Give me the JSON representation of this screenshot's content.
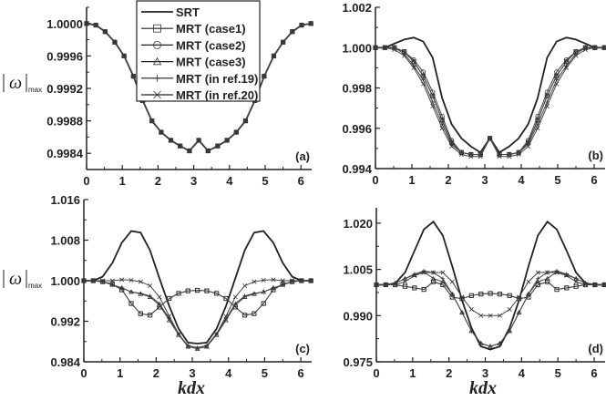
{
  "chart_data": [
    {
      "panel_label": "(a)",
      "type": "line",
      "xlabel": "",
      "ylabel": "|ω|max",
      "xlim": [
        0,
        6.3
      ],
      "ylim": [
        0.9982,
        1.0002
      ],
      "xticks": [
        0,
        1,
        2,
        3,
        4,
        5,
        6
      ],
      "yticks": [
        0.9984,
        0.9988,
        0.9992,
        0.9996,
        1.0
      ],
      "ytick_labels": [
        "0.9984",
        "0.9988",
        "0.9992",
        "0.9996",
        "1.0000"
      ],
      "legend": {
        "placement": "top-center",
        "entries": [
          "SRT",
          "MRT (case1)",
          "MRT (case2)",
          "MRT (case3)",
          "MRT (in ref.19)",
          "MRT (in ref.20)"
        ]
      },
      "x": [
        0,
        0.26,
        0.52,
        0.79,
        1.05,
        1.31,
        1.57,
        1.83,
        2.09,
        2.36,
        2.62,
        2.88,
        3.14,
        3.4,
        3.67,
        3.93,
        4.19,
        4.45,
        4.71,
        4.97,
        5.24,
        5.5,
        5.76,
        6.02,
        6.28
      ],
      "series": [
        {
          "name": "SRT",
          "marker": "none",
          "values": [
            1.0,
            0.99998,
            0.9999,
            0.99977,
            0.9996,
            0.99935,
            0.99905,
            0.9988,
            0.99866,
            0.99856,
            0.99849,
            0.99843,
            0.99856,
            0.99843,
            0.99849,
            0.99856,
            0.99866,
            0.9988,
            0.99905,
            0.99935,
            0.9996,
            0.99977,
            0.9999,
            0.99998,
            1.0
          ]
        },
        {
          "name": "MRT (case1)",
          "marker": "square",
          "values": [
            1.0,
            0.99998,
            0.9999,
            0.99977,
            0.9996,
            0.99935,
            0.99905,
            0.9988,
            0.99866,
            0.99856,
            0.99849,
            0.99843,
            0.99856,
            0.99843,
            0.99849,
            0.99856,
            0.99866,
            0.9988,
            0.99905,
            0.99935,
            0.9996,
            0.99977,
            0.9999,
            0.99998,
            1.0
          ]
        },
        {
          "name": "MRT (case2)",
          "marker": "circle",
          "values": [
            1.0,
            0.99998,
            0.9999,
            0.99977,
            0.9996,
            0.99935,
            0.99905,
            0.9988,
            0.99866,
            0.99856,
            0.99849,
            0.99843,
            0.99856,
            0.99843,
            0.99849,
            0.99856,
            0.99866,
            0.9988,
            0.99905,
            0.99935,
            0.9996,
            0.99977,
            0.9999,
            0.99998,
            1.0
          ]
        },
        {
          "name": "MRT (case3)",
          "marker": "triangle",
          "values": [
            1.0,
            0.99998,
            0.9999,
            0.99977,
            0.9996,
            0.99935,
            0.99905,
            0.9988,
            0.99866,
            0.99856,
            0.99849,
            0.99843,
            0.99856,
            0.99843,
            0.99849,
            0.99856,
            0.99866,
            0.9988,
            0.99905,
            0.99935,
            0.9996,
            0.99977,
            0.9999,
            0.99998,
            1.0
          ]
        },
        {
          "name": "MRT (in ref.19)",
          "marker": "plus",
          "values": [
            1.0,
            0.99998,
            0.9999,
            0.99977,
            0.9996,
            0.99935,
            0.99905,
            0.9988,
            0.99866,
            0.99856,
            0.99849,
            0.99843,
            0.99856,
            0.99843,
            0.99849,
            0.99856,
            0.99866,
            0.9988,
            0.99905,
            0.99935,
            0.9996,
            0.99977,
            0.9999,
            0.99998,
            1.0
          ]
        },
        {
          "name": "MRT (in ref.20)",
          "marker": "cross",
          "values": [
            1.0,
            0.99998,
            0.9999,
            0.99977,
            0.9996,
            0.99935,
            0.99905,
            0.9988,
            0.99866,
            0.99856,
            0.99849,
            0.99843,
            0.99856,
            0.99843,
            0.99849,
            0.99856,
            0.99866,
            0.9988,
            0.99905,
            0.99935,
            0.9996,
            0.99977,
            0.9999,
            0.99998,
            1.0
          ]
        }
      ]
    },
    {
      "panel_label": "(b)",
      "type": "line",
      "xlabel": "",
      "ylabel": "",
      "xlim": [
        0,
        6.3
      ],
      "ylim": [
        0.994,
        1.002
      ],
      "xticks": [
        0,
        1,
        2,
        3,
        4,
        5,
        6
      ],
      "yticks": [
        0.994,
        0.996,
        0.998,
        1.0,
        1.002
      ],
      "ytick_labels": [
        "0.994",
        "0.996",
        "0.998",
        "1.000",
        "1.002"
      ],
      "x": [
        0,
        0.26,
        0.52,
        0.79,
        1.05,
        1.31,
        1.57,
        1.83,
        2.09,
        2.36,
        2.62,
        2.88,
        3.14,
        3.4,
        3.67,
        3.93,
        4.19,
        4.45,
        4.71,
        4.97,
        5.24,
        5.5,
        5.76,
        6.02,
        6.28
      ],
      "series": [
        {
          "name": "SRT",
          "marker": "none",
          "values": [
            1.0,
            1.0,
            1.0002,
            1.0004,
            1.0005,
            1.0003,
            0.9995,
            0.9975,
            0.9962,
            0.9955,
            0.9951,
            0.9948,
            0.9955,
            0.9948,
            0.9951,
            0.9955,
            0.9962,
            0.9975,
            0.9995,
            1.0003,
            1.0005,
            1.0004,
            1.0002,
            1.0,
            1.0
          ]
        },
        {
          "name": "MRT (case1)",
          "marker": "square",
          "values": [
            1.0,
            1.0,
            1.0,
            0.9998,
            0.9993,
            0.9986,
            0.9976,
            0.9964,
            0.9953,
            0.9948,
            0.9947,
            0.9947,
            0.9955,
            0.9947,
            0.9947,
            0.9948,
            0.9953,
            0.9964,
            0.9976,
            0.9986,
            0.9993,
            0.9998,
            1.0,
            1.0,
            1.0
          ]
        },
        {
          "name": "MRT (case2)",
          "marker": "circle",
          "values": [
            1.0,
            1.0,
            1.0,
            0.9998,
            0.9994,
            0.9988,
            0.9978,
            0.9966,
            0.9954,
            0.9948,
            0.9947,
            0.9947,
            0.9955,
            0.9947,
            0.9947,
            0.9948,
            0.9954,
            0.9966,
            0.9978,
            0.9988,
            0.9994,
            0.9998,
            1.0,
            1.0,
            1.0
          ]
        },
        {
          "name": "MRT (case3)",
          "marker": "triangle",
          "values": [
            1.0,
            1.0,
            1.0,
            0.9998,
            0.9993,
            0.9986,
            0.9976,
            0.9964,
            0.9953,
            0.9948,
            0.9947,
            0.9947,
            0.9955,
            0.9947,
            0.9947,
            0.9948,
            0.9953,
            0.9964,
            0.9976,
            0.9986,
            0.9993,
            0.9998,
            1.0,
            1.0,
            1.0
          ]
        },
        {
          "name": "MRT (in ref.19)",
          "marker": "plus",
          "values": [
            1.0,
            1.0,
            1.0,
            0.9997,
            0.9991,
            0.9984,
            0.9973,
            0.9962,
            0.9952,
            0.9948,
            0.9947,
            0.9947,
            0.9955,
            0.9947,
            0.9947,
            0.9948,
            0.9952,
            0.9962,
            0.9973,
            0.9984,
            0.9991,
            0.9997,
            1.0,
            1.0,
            1.0
          ]
        },
        {
          "name": "MRT (in ref.20)",
          "marker": "cross",
          "values": [
            1.0,
            1.0,
            0.9999,
            0.9996,
            0.999,
            0.9982,
            0.9971,
            0.996,
            0.9951,
            0.9947,
            0.9946,
            0.9946,
            0.9955,
            0.9946,
            0.9946,
            0.9947,
            0.9951,
            0.996,
            0.9971,
            0.9982,
            0.999,
            0.9996,
            0.9999,
            1.0,
            1.0
          ]
        }
      ]
    },
    {
      "panel_label": "(c)",
      "type": "line",
      "xlabel": "kdx",
      "ylabel": "|ω|max",
      "xlim": [
        0,
        6.3
      ],
      "ylim": [
        0.984,
        1.016
      ],
      "xticks": [
        0,
        1,
        2,
        3,
        4,
        5,
        6
      ],
      "yticks": [
        0.984,
        0.992,
        1.0,
        1.008,
        1.016
      ],
      "ytick_labels": [
        "0.984",
        "0.992",
        "1.000",
        "1.008",
        "1.016"
      ],
      "x": [
        0,
        0.26,
        0.52,
        0.79,
        1.05,
        1.31,
        1.57,
        1.83,
        2.09,
        2.36,
        2.62,
        2.88,
        3.14,
        3.4,
        3.67,
        3.93,
        4.19,
        4.45,
        4.71,
        4.97,
        5.24,
        5.5,
        5.76,
        6.02,
        6.28
      ],
      "series": [
        {
          "name": "SRT",
          "marker": "none",
          "values": [
            1.0,
            1.0,
            1.0008,
            1.0035,
            1.0075,
            1.0098,
            1.0095,
            1.006,
            1.0005,
            0.995,
            0.9905,
            0.9878,
            0.9876,
            0.9878,
            0.9905,
            0.995,
            1.0005,
            1.006,
            1.0095,
            1.0098,
            1.0075,
            1.0035,
            1.0008,
            1.0,
            1.0
          ]
        },
        {
          "name": "MRT (case1)",
          "marker": "square",
          "values": [
            1.0,
            1.0,
            0.9998,
            0.9993,
            0.9982,
            0.9955,
            0.9935,
            0.9932,
            0.9948,
            0.9965,
            0.9975,
            0.998,
            0.9981,
            0.998,
            0.9975,
            0.9965,
            0.9948,
            0.9932,
            0.9935,
            0.9955,
            0.9982,
            0.9993,
            0.9998,
            1.0,
            1.0
          ]
        },
        {
          "name": "MRT (case2)",
          "marker": "circle",
          "values": [
            1.0,
            1.0,
            0.9998,
            0.9993,
            0.9982,
            0.9955,
            0.9935,
            0.9932,
            0.9948,
            0.9965,
            0.9975,
            0.998,
            0.9981,
            0.998,
            0.9975,
            0.9965,
            0.9948,
            0.9932,
            0.9935,
            0.9955,
            0.9982,
            0.9993,
            0.9998,
            1.0,
            1.0
          ]
        },
        {
          "name": "MRT (case3)",
          "marker": "triangle",
          "values": [
            1.0,
            1.0,
            0.9998,
            0.9992,
            0.9986,
            0.9978,
            0.9974,
            0.9968,
            0.9952,
            0.9922,
            0.9893,
            0.987,
            0.9866,
            0.987,
            0.9893,
            0.9922,
            0.9952,
            0.9968,
            0.9974,
            0.9978,
            0.9986,
            0.9992,
            0.9998,
            1.0,
            1.0
          ]
        },
        {
          "name": "MRT (in ref.19)",
          "marker": "plus",
          "values": [
            1.0,
            1.0,
            0.9998,
            0.9992,
            0.9985,
            0.9978,
            0.9975,
            0.997,
            0.9955,
            0.9925,
            0.9895,
            0.9872,
            0.9868,
            0.9872,
            0.9895,
            0.9925,
            0.9955,
            0.997,
            0.9975,
            0.9978,
            0.9985,
            0.9992,
            0.9998,
            1.0,
            1.0
          ]
        },
        {
          "name": "MRT (in ref.20)",
          "marker": "cross",
          "values": [
            1.0,
            1.0,
            1.0,
            1.0,
            1.0002,
            1.0001,
            0.9998,
            0.999,
            0.9968,
            0.993,
            0.9895,
            0.987,
            0.9866,
            0.987,
            0.9895,
            0.993,
            0.9968,
            0.999,
            0.9998,
            1.0001,
            1.0002,
            1.0,
            1.0,
            1.0,
            1.0
          ]
        }
      ]
    },
    {
      "panel_label": "(d)",
      "type": "line",
      "xlabel": "kdx",
      "ylabel": "",
      "xlim": [
        0,
        6.3
      ],
      "ylim": [
        0.975,
        1.025
      ],
      "xticks": [
        0,
        1,
        2,
        3,
        4,
        5,
        6
      ],
      "yticks": [
        0.975,
        0.99,
        1.005,
        1.02
      ],
      "ytick_labels": [
        "0.975",
        "0.990",
        "1.005",
        "1.020"
      ],
      "x": [
        0,
        0.26,
        0.52,
        0.79,
        1.05,
        1.31,
        1.57,
        1.83,
        2.09,
        2.36,
        2.62,
        2.88,
        3.14,
        3.4,
        3.67,
        3.93,
        4.19,
        4.45,
        4.71,
        4.97,
        5.24,
        5.5,
        5.76,
        6.02,
        6.28
      ],
      "series": [
        {
          "name": "SRT",
          "marker": "none",
          "values": [
            1.0,
            1.0,
            1.0005,
            1.004,
            1.011,
            1.018,
            1.0205,
            1.016,
            1.006,
            0.995,
            0.986,
            0.98,
            0.979,
            0.98,
            0.986,
            0.995,
            1.006,
            1.016,
            1.0205,
            1.018,
            1.011,
            1.004,
            1.0005,
            1.0,
            1.0
          ]
        },
        {
          "name": "MRT (case1)",
          "marker": "square",
          "values": [
            1.0,
            1.0,
            1.0,
            0.9995,
            0.999,
            0.9985,
            1.001,
            1.0,
            0.996,
            0.9955,
            0.9965,
            0.997,
            0.9972,
            0.997,
            0.9965,
            0.9955,
            0.996,
            1.0,
            1.001,
            0.9985,
            0.999,
            0.9995,
            1.0,
            1.0,
            1.0
          ]
        },
        {
          "name": "MRT (case2)",
          "marker": "circle",
          "values": [
            1.0,
            1.0,
            1.0,
            0.9995,
            0.999,
            0.9985,
            1.001,
            1.0,
            0.996,
            0.9955,
            0.9965,
            0.997,
            0.9972,
            0.997,
            0.9965,
            0.9955,
            0.996,
            1.0,
            1.001,
            0.9985,
            0.999,
            0.9995,
            1.0,
            1.0,
            1.0
          ]
        },
        {
          "name": "MRT (case3)",
          "marker": "triangle",
          "values": [
            1.0,
            1.0,
            1.0005,
            1.002,
            1.0032,
            1.0042,
            1.002,
            1.001,
            0.997,
            0.991,
            0.985,
            0.981,
            0.98,
            0.981,
            0.985,
            0.991,
            0.997,
            1.001,
            1.002,
            1.0042,
            1.0032,
            1.002,
            1.0005,
            1.0,
            1.0
          ]
        },
        {
          "name": "MRT (in ref.19)",
          "marker": "plus",
          "values": [
            1.0,
            1.0,
            1.0005,
            1.002,
            1.0035,
            1.0045,
            1.004,
            1.002,
            0.997,
            0.991,
            0.985,
            0.981,
            0.98,
            0.981,
            0.985,
            0.991,
            0.997,
            1.002,
            1.004,
            1.0045,
            1.0035,
            1.002,
            1.0005,
            1.0,
            1.0
          ]
        },
        {
          "name": "MRT (in ref.20)",
          "marker": "cross",
          "values": [
            1.0,
            1.0,
            1.0,
            1.001,
            1.003,
            1.004,
            1.004,
            1.004,
            1.001,
            0.996,
            0.992,
            0.99,
            0.99,
            0.99,
            0.992,
            0.996,
            1.001,
            1.004,
            1.004,
            1.004,
            1.003,
            1.001,
            1.0,
            1.0,
            1.0
          ]
        }
      ]
    }
  ]
}
